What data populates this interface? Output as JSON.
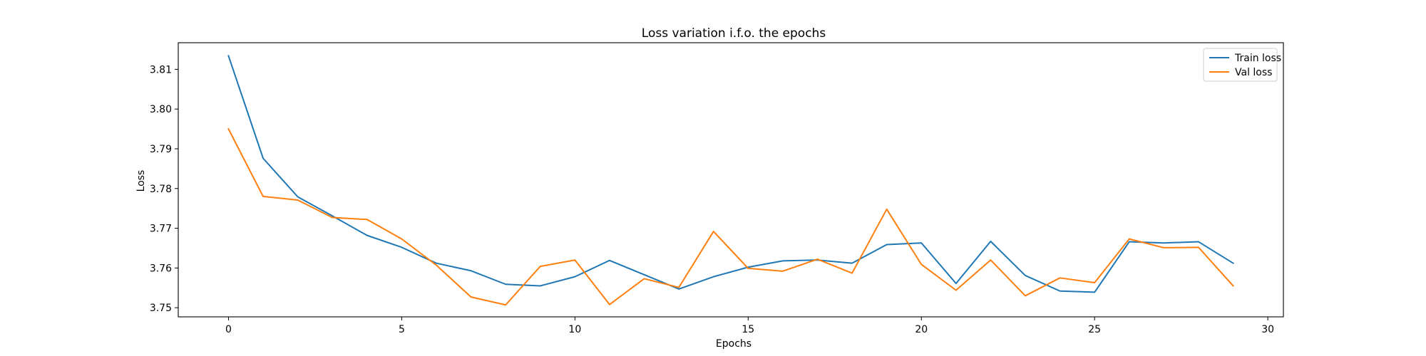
{
  "chart_data": {
    "type": "line",
    "title": "Loss variation i.f.o. the epochs",
    "xlabel": "Epochs",
    "ylabel": "Loss",
    "xlim": [
      -1.45,
      30.45
    ],
    "ylim": [
      3.7477,
      3.8167
    ],
    "xticks": [
      0,
      5,
      10,
      15,
      20,
      25,
      30
    ],
    "yticks": [
      3.75,
      3.76,
      3.77,
      3.78,
      3.79,
      3.8,
      3.81
    ],
    "grid": false,
    "legend_position": "top-right",
    "x": [
      0,
      1,
      2,
      3,
      4,
      5,
      6,
      7,
      8,
      9,
      10,
      11,
      12,
      13,
      14,
      15,
      16,
      17,
      18,
      19,
      20,
      21,
      22,
      23,
      24,
      25,
      26,
      27,
      28,
      29
    ],
    "series": [
      {
        "name": "Train loss",
        "color": "#1f77b4",
        "values": [
          3.8134,
          3.7876,
          3.7779,
          3.7731,
          3.7682,
          3.7652,
          3.7612,
          3.7593,
          3.7559,
          3.7555,
          3.7578,
          3.7619,
          3.7583,
          3.7547,
          3.7578,
          3.7602,
          3.7618,
          3.762,
          3.7612,
          3.7659,
          3.7663,
          3.7561,
          3.7667,
          3.7581,
          3.7542,
          3.7539,
          3.7666,
          3.7663,
          3.7666,
          3.7612
        ]
      },
      {
        "name": "Val loss",
        "color": "#ff7f0e",
        "values": [
          3.795,
          3.778,
          3.7771,
          3.7727,
          3.7722,
          3.7673,
          3.7607,
          3.7527,
          3.7507,
          3.7604,
          3.762,
          3.7508,
          3.7573,
          3.7551,
          3.7692,
          3.7599,
          3.7592,
          3.7622,
          3.7587,
          3.7748,
          3.7609,
          3.7544,
          3.762,
          3.753,
          3.7575,
          3.7563,
          3.7673,
          3.7651,
          3.7652,
          3.7555
        ]
      }
    ]
  }
}
